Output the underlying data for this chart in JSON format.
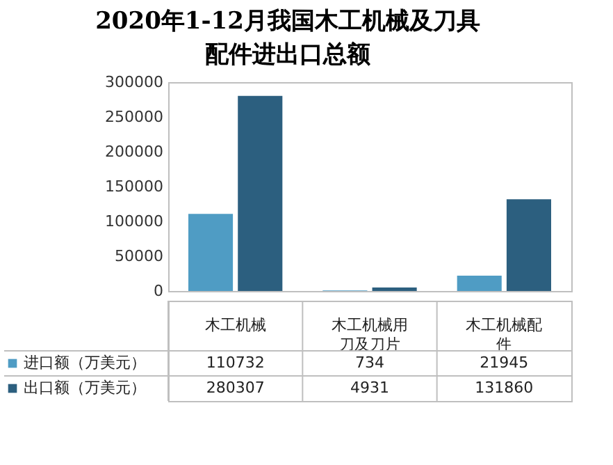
{
  "chart_data": {
    "type": "bar",
    "title": "2020年1-12月我国木工机械及刀具配件进出口总额",
    "categories": [
      "木工机械",
      "木工机械用刀及刀片",
      "木工机械配件"
    ],
    "series": [
      {
        "name": "进口额（万美元）",
        "color": "#4f9cc4",
        "values": [
          110732,
          734,
          21945
        ]
      },
      {
        "name": "出口额（万美元）",
        "color": "#2c5f7f",
        "values": [
          280307,
          4931,
          131860
        ]
      }
    ],
    "ylim": [
      0,
      300000
    ],
    "yticks": [
      0,
      50000,
      100000,
      150000,
      200000,
      250000,
      300000
    ],
    "grid": false,
    "data_labels": true,
    "legend": "bottom"
  }
}
